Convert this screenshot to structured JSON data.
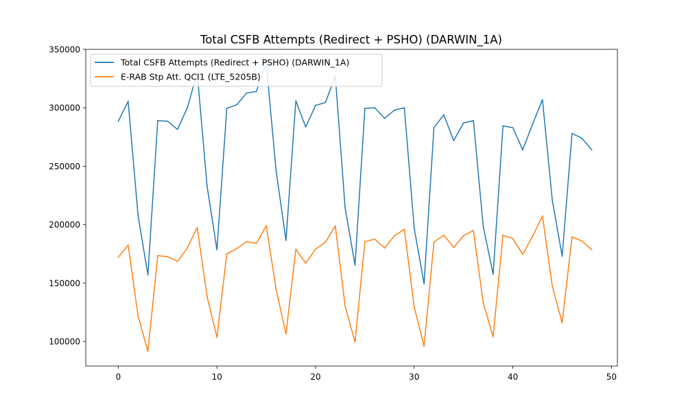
{
  "chart_data": {
    "type": "line",
    "title": "Total CSFB Attempts (Redirect + PSHO) (DARWIN_1A)",
    "xlabel": "",
    "ylabel": "",
    "xlim": [
      -3.3,
      50.6
    ],
    "ylim": [
      79000,
      350000
    ],
    "xticks": [
      0,
      10,
      20,
      30,
      40,
      50
    ],
    "yticks": [
      100000,
      150000,
      200000,
      250000,
      300000,
      350000
    ],
    "grid": false,
    "legend_position": "top-left",
    "x": [
      0,
      1,
      2,
      3,
      4,
      5,
      6,
      7,
      8,
      9,
      10,
      11,
      12,
      13,
      14,
      15,
      16,
      17,
      18,
      19,
      20,
      21,
      22,
      23,
      24,
      25,
      26,
      27,
      28,
      29,
      30,
      31,
      32,
      33,
      34,
      35,
      36,
      37,
      38,
      39,
      40,
      41,
      42,
      43,
      44,
      45,
      46,
      47,
      48
    ],
    "series": [
      {
        "name": "Total CSFB Attempts (Redirect + PSHO) (DARWIN_1A)",
        "color": "#1f77b4",
        "values": [
          288500,
          305500,
          208000,
          157000,
          289000,
          288500,
          281500,
          300000,
          330000,
          233000,
          178500,
          299500,
          302500,
          312500,
          314000,
          338000,
          246000,
          186500,
          306000,
          283500,
          302000,
          304500,
          327000,
          214000,
          165500,
          299500,
          300000,
          291000,
          298000,
          300000,
          197000,
          149500,
          283000,
          294000,
          272000,
          287000,
          289000,
          198500,
          157500,
          284500,
          283000,
          264000,
          286000,
          307000,
          221000,
          173000,
          278000,
          274000,
          264000
        ]
      },
      {
        "name": "E-RAB Stp Att. QCI1 (LTE_5205B)",
        "color": "#ff7f0e",
        "values": [
          172000,
          182500,
          122000,
          91500,
          173500,
          172500,
          168500,
          180000,
          197500,
          138500,
          103500,
          175000,
          179500,
          185500,
          184000,
          199000,
          144500,
          106500,
          179000,
          167000,
          179000,
          185000,
          199000,
          130000,
          99500,
          185500,
          187500,
          180000,
          190500,
          196000,
          129500,
          96000,
          185000,
          191000,
          180500,
          190500,
          195000,
          133000,
          104000,
          191000,
          188000,
          174500,
          190000,
          207500,
          147500,
          116000,
          189500,
          186000,
          178500
        ]
      }
    ]
  }
}
